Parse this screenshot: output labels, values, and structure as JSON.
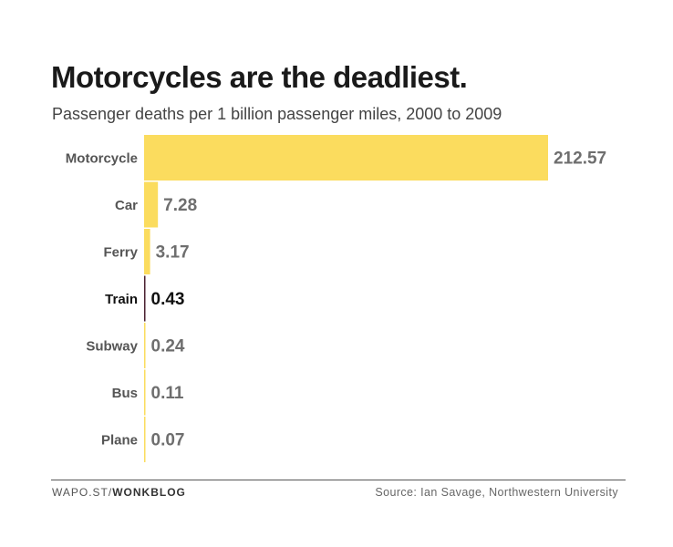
{
  "chart_data": {
    "type": "bar",
    "orientation": "horizontal",
    "title": "Motorcycles are the deadliest.",
    "subtitle": "Passenger deaths per 1 billion passenger miles, 2000 to 2009",
    "categories": [
      "Motorcycle",
      "Car",
      "Ferry",
      "Train",
      "Subway",
      "Bus",
      "Plane"
    ],
    "values": [
      212.57,
      7.28,
      3.17,
      0.43,
      0.24,
      0.11,
      0.07
    ],
    "value_labels": [
      "212.57",
      "7.28",
      "3.17",
      "0.43",
      "0.24",
      "0.11",
      "0.07"
    ],
    "highlight": "Train",
    "xlim": [
      0,
      212.57
    ],
    "grid": false,
    "legend": "none",
    "colors": {
      "bar": "#fbdc5e",
      "highlight_bar": "#4a2130",
      "label": "#555555",
      "highlight_label": "#111111",
      "value": "#6e6e6e",
      "highlight_value": "#111111"
    }
  },
  "footer": {
    "source_prefix": "WAPO.ST/",
    "source_brand": "WONKBLOG",
    "credit": "Source: Ian Savage, Northwestern University"
  }
}
